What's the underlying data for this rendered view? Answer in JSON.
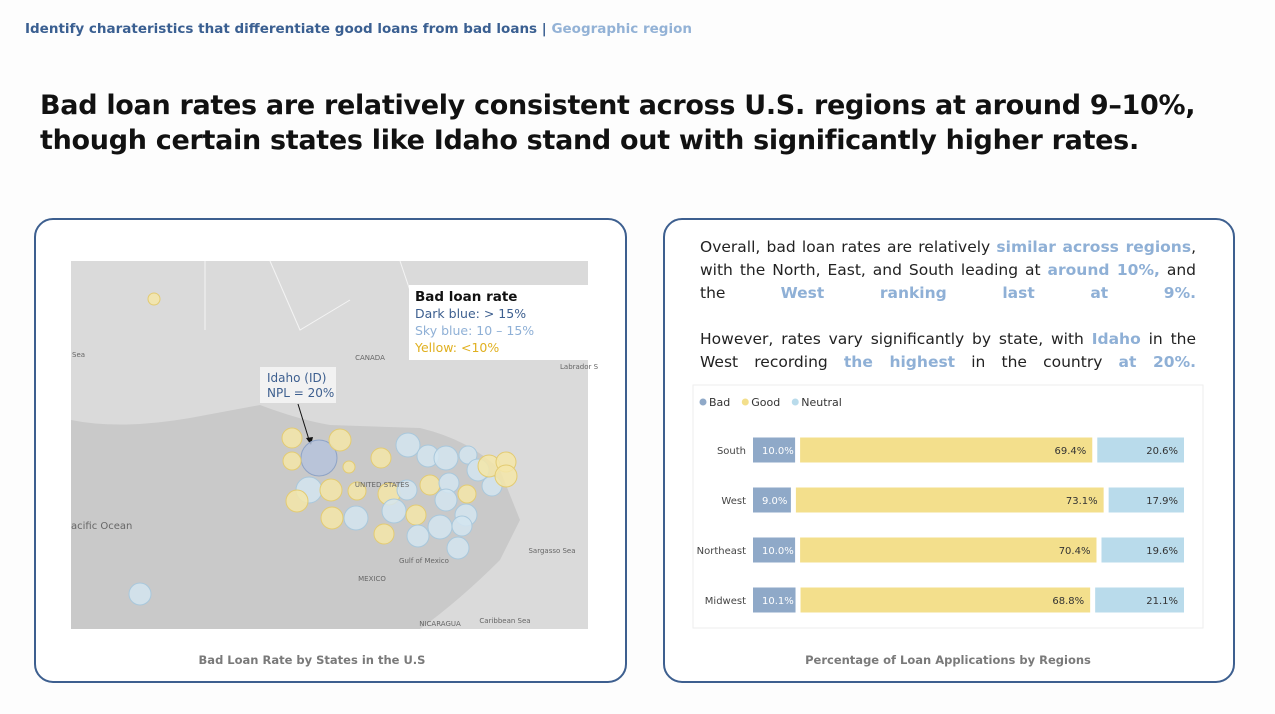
{
  "header": {
    "breadcrumb": "Identify charateristics that differentiate good loans from bad loans",
    "separator": "|",
    "section": "Geographic region"
  },
  "headline": [
    "Bad loan rates are relatively consistent across U.S. regions at around 9–10%,",
    "though certain states like Idaho stand out with significantly higher rates."
  ],
  "map_panel": {
    "legend_title": "Bad loan rate",
    "legend_items": [
      "Dark blue: > 15%",
      "Sky blue: 10 – 15%",
      "Yellow: <10%"
    ],
    "annotation": [
      "Idaho (ID)",
      "NPL = 20%"
    ],
    "map_labels": [
      "CANADA",
      "UNITED STATES",
      "MEXICO",
      "Gulf of Mexico",
      "Sargasso Sea",
      "Caribbean Sea",
      "NICARAGUA",
      "acific Ocean",
      "Labrador S",
      "Sea"
    ],
    "caption": "Bad Loan Rate by States in the U.S"
  },
  "text_panel": {
    "paragraphs": [
      [
        {
          "text": "Overall, bad loan rates are relatively "
        },
        {
          "text": "similar across regions",
          "em": true
        },
        {
          "text": ", with the North, East, and South leading at "
        },
        {
          "text": "around 10%,",
          "em": true
        },
        {
          "text": " and the "
        },
        {
          "text": "West ranking last at 9%.",
          "em": true
        }
      ],
      [
        {
          "text": "However, rates vary significantly by state, with "
        },
        {
          "text": "Idaho",
          "em": true
        },
        {
          "text": " in the West recording "
        },
        {
          "text": "the highest",
          "em": true
        },
        {
          "text": " in the country "
        },
        {
          "text": "at 20%.",
          "em": true
        }
      ]
    ],
    "caption": "Percentage of Loan Applications by Regions"
  },
  "chart_data": {
    "type": "stacked-bar",
    "orientation": "horizontal",
    "categories": [
      "South",
      "West",
      "Northeast",
      "Midwest"
    ],
    "xlim": [
      0,
      100
    ],
    "series": [
      {
        "name": "Bad",
        "color": "#8fa9c8",
        "values": [
          10.0,
          9.0,
          10.0,
          10.1
        ],
        "value_labels": [
          "10.0%",
          "9.0%",
          "10.0%",
          "10.1%"
        ]
      },
      {
        "name": "Good",
        "color": "#f3df8c",
        "values": [
          69.4,
          73.1,
          70.4,
          68.8
        ],
        "value_labels": [
          "69.4%",
          "73.1%",
          "70.4%",
          "68.8%"
        ]
      },
      {
        "name": "Neutral",
        "color": "#b9dbeb",
        "values": [
          20.6,
          17.9,
          19.6,
          21.1
        ],
        "value_labels": [
          "20.6%",
          "17.9%",
          "19.6%",
          "21.1%"
        ]
      }
    ]
  }
}
